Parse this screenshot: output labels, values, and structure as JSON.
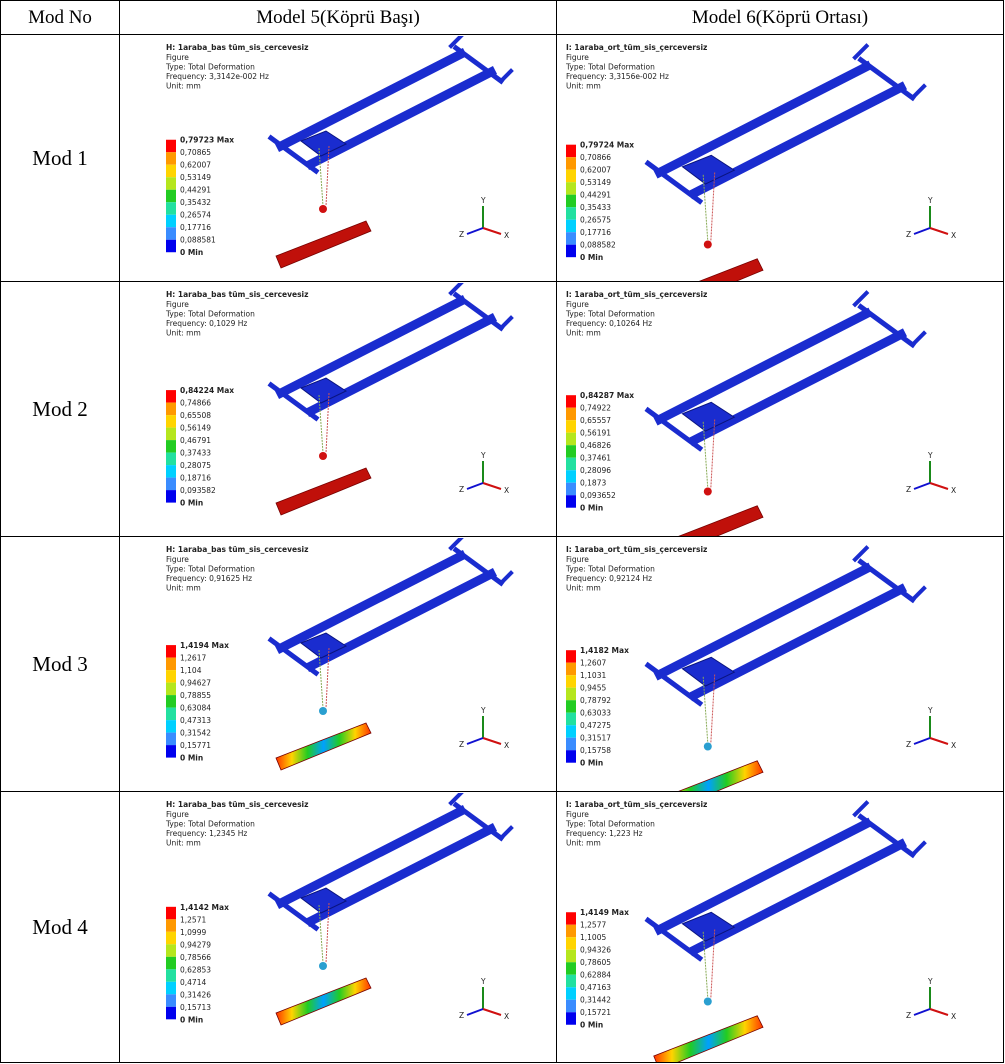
{
  "table": {
    "header": [
      "Mod No",
      "Model 5(Köprü Başı)",
      "Model 6(Köprü Ortası)"
    ],
    "rows": [
      {
        "label": "Mod 1",
        "cells": [
          {
            "title": "H: 1araba_bas tüm_sis_cercevesiz",
            "subtitle": "Figure",
            "type": "Type: Total Deformation",
            "frequency": "Frequency: 3,3142e-002 Hz",
            "unit": "Unit: mm",
            "legend": [
              "0,79723 Max",
              "0,70865",
              "0,62007",
              "0,53149",
              "0,44291",
              "0,35432",
              "0,26574",
              "0,17716",
              "0,088581",
              "0 Min"
            ],
            "axes": [
              "Y",
              "Z",
              "X"
            ]
          },
          {
            "title": "I: 1araba_ort_tüm_sis_çerceversiz",
            "subtitle": "Figure",
            "type": "Type: Total Deformation",
            "frequency": "Frequency: 3,3156e-002 Hz",
            "unit": "Unit: mm",
            "legend": [
              "0,79724 Max",
              "0,70866",
              "0,62007",
              "0,53149",
              "0,44291",
              "0,35433",
              "0,26575",
              "0,17716",
              "0,088582",
              "0 Min"
            ],
            "axes": [
              "Y",
              "Z",
              "X"
            ]
          }
        ]
      },
      {
        "label": "Mod 2",
        "cells": [
          {
            "title": "H: 1araba_bas tüm_sis_cercevesiz",
            "subtitle": "Figure",
            "type": "Type: Total Deformation",
            "frequency": "Frequency: 0,1029 Hz",
            "unit": "Unit: mm",
            "legend": [
              "0,84224 Max",
              "0,74866",
              "0,65508",
              "0,56149",
              "0,46791",
              "0,37433",
              "0,28075",
              "0,18716",
              "0,093582",
              "0 Min"
            ],
            "axes": [
              "Y",
              "Z",
              "X"
            ]
          },
          {
            "title": "I: 1araba_ort_tüm_sis_çerceversiz",
            "subtitle": "Figure",
            "type": "Type: Total Deformation",
            "frequency": "Frequency: 0,10264 Hz",
            "unit": "Unit: mm",
            "legend": [
              "0,84287 Max",
              "0,74922",
              "0,65557",
              "0,56191",
              "0,46826",
              "0,37461",
              "0,28096",
              "0,1873",
              "0,093652",
              "0 Min"
            ],
            "axes": [
              "Y",
              "Z",
              "X"
            ]
          }
        ]
      },
      {
        "label": "Mod 3",
        "cells": [
          {
            "title": "H: 1araba_bas tüm_sis_cercevesiz",
            "subtitle": "Figure",
            "type": "Type: Total Deformation",
            "frequency": "Frequency: 0,91625 Hz",
            "unit": "Unit: mm",
            "legend": [
              "1,4194 Max",
              "1,2617",
              "1,104",
              "0,94627",
              "0,78855",
              "0,63084",
              "0,47313",
              "0,31542",
              "0,15771",
              "0 Min"
            ],
            "axes": [
              "Y",
              "Z",
              "X"
            ]
          },
          {
            "title": "I: 1araba_ort_tüm_sis_çerceversiz",
            "subtitle": "Figure",
            "type": "Type: Total Deformation",
            "frequency": "Frequency: 0,92124 Hz",
            "unit": "Unit: mm",
            "legend": [
              "1,4182 Max",
              "1,2607",
              "1,1031",
              "0,9455",
              "0,78792",
              "0,63033",
              "0,47275",
              "0,31517",
              "0,15758",
              "0 Min"
            ],
            "axes": [
              "Y",
              "Z",
              "X"
            ]
          }
        ]
      },
      {
        "label": "Mod 4",
        "cells": [
          {
            "title": "H: 1araba_bas tüm_sis_cercevesiz",
            "subtitle": "Figure",
            "type": "Type: Total Deformation",
            "frequency": "Frequency: 1,2345 Hz",
            "unit": "Unit: mm",
            "legend": [
              "1,4142 Max",
              "1,2571",
              "1,0999",
              "0,94279",
              "0,78566",
              "0,62853",
              "0,4714",
              "0,31426",
              "0,15713",
              "0 Min"
            ],
            "axes": [
              "Y",
              "Z",
              "X"
            ]
          },
          {
            "title": "I: 1araba_ort_tüm_sis_çerceversiz",
            "subtitle": "Figure",
            "type": "Type: Total Deformation",
            "frequency": "Frequency: 1,223 Hz",
            "unit": "Unit: mm",
            "legend": [
              "1,4149 Max",
              "1,2577",
              "1,1005",
              "0,94326",
              "0,78605",
              "0,62884",
              "0,47163",
              "0,31442",
              "0,15721",
              "0 Min"
            ],
            "axes": [
              "Y",
              "Z",
              "X"
            ]
          }
        ]
      }
    ]
  }
}
